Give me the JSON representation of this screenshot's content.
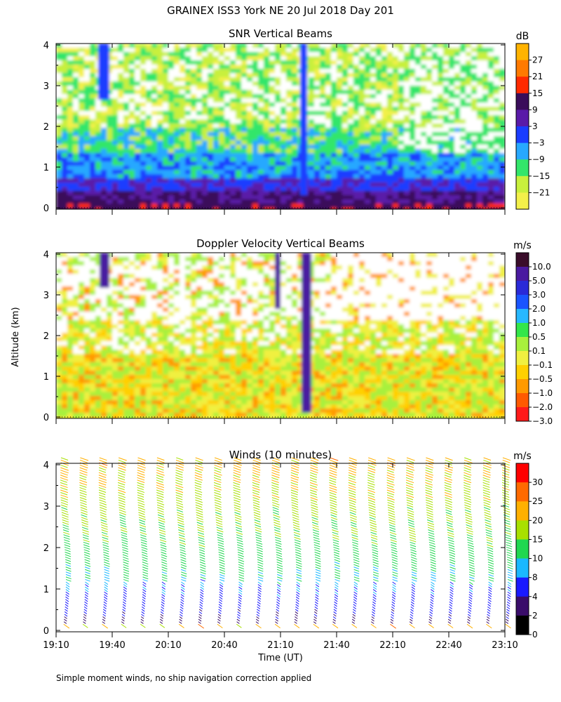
{
  "figure": {
    "title": "GRAINEX ISS3 York NE  20 Jul 2018 Day 201",
    "ylabel_shared": "Altitude (km)",
    "xlabel": "Time (UT)",
    "x_ticks": [
      "19:10",
      "19:40",
      "20:10",
      "20:40",
      "21:10",
      "21:40",
      "22:10",
      "22:40",
      "23:10"
    ],
    "y_ticks": [
      "0",
      "1",
      "2",
      "3",
      "4"
    ],
    "footnote": "Simple moment winds, no ship navigation correction applied"
  },
  "chart_data": [
    {
      "type": "heatmap",
      "title": "SNR Vertical Beams",
      "x_range": [
        "19:10",
        "23:10"
      ],
      "ylim": [
        0,
        4
      ],
      "colorbar": {
        "unit": "dB",
        "labels": [
          "27",
          "21",
          "15",
          "9",
          "3",
          "−3",
          "−9",
          "−15",
          "−21"
        ],
        "colors": [
          "#ffb300",
          "#ff7a00",
          "#ff2a00",
          "#3a0d5a",
          "#5a1aa8",
          "#1a3cff",
          "#27a8ff",
          "#33e66a",
          "#c8f03c",
          "#f3f04a"
        ]
      },
      "description_values": {
        "near_surface_dB": 9,
        "mid_level_dB": -9,
        "upper_level_dB": -15
      }
    },
    {
      "type": "heatmap",
      "title": "Doppler Velocity Vertical Beams",
      "x_range": [
        "19:10",
        "23:10"
      ],
      "ylim": [
        0,
        4
      ],
      "colorbar": {
        "unit": "m/s",
        "labels": [
          "10.0",
          "5.0",
          "3.0",
          "2.0",
          "1.0",
          "0.5",
          "0.1",
          "−0.1",
          "−0.5",
          "−1.0",
          "−2.0",
          "−3.0"
        ],
        "colors": [
          "#3a0d2a",
          "#4a1aa0",
          "#2a2ad8",
          "#1a55ff",
          "#27b8ff",
          "#33e64a",
          "#a8f03c",
          "#f0f040",
          "#ffd000",
          "#ff9a00",
          "#ff5a00",
          "#ff1a1a"
        ]
      },
      "description_values": {
        "low_level_m_s": -0.5,
        "updraft_column_m_s": 5.0
      }
    },
    {
      "type": "scatter",
      "title": "Winds (10 minutes)",
      "x_range": [
        "19:10",
        "23:10"
      ],
      "ylim": [
        0,
        4
      ],
      "colorbar": {
        "unit": "m/s",
        "labels": [
          "30",
          "25",
          "20",
          "15",
          "10",
          "8",
          "4",
          "2",
          "0"
        ],
        "colors": [
          "#ff0000",
          "#ff6a00",
          "#ffb000",
          "#a8e000",
          "#20d850",
          "#1ab8ff",
          "#1a1aff",
          "#3a0d6a",
          "#000000"
        ]
      },
      "profile_times": [
        "19:10",
        "19:20",
        "19:30",
        "19:40",
        "19:50",
        "20:00",
        "20:10",
        "20:20",
        "20:30",
        "20:40",
        "20:50",
        "21:00",
        "21:10",
        "21:20",
        "21:30",
        "21:40",
        "21:50",
        "22:00",
        "22:10",
        "22:20",
        "22:30",
        "22:40",
        "22:50",
        "23:00"
      ],
      "speed_profile": [
        {
          "z": 0.2,
          "speed": 3
        },
        {
          "z": 0.6,
          "speed": 5
        },
        {
          "z": 1.0,
          "speed": 8
        },
        {
          "z": 1.5,
          "speed": 11
        },
        {
          "z": 2.0,
          "speed": 13
        },
        {
          "z": 2.5,
          "speed": 15
        },
        {
          "z": 3.0,
          "speed": 17
        },
        {
          "z": 3.5,
          "speed": 19
        },
        {
          "z": 4.0,
          "speed": 22
        }
      ]
    }
  ]
}
